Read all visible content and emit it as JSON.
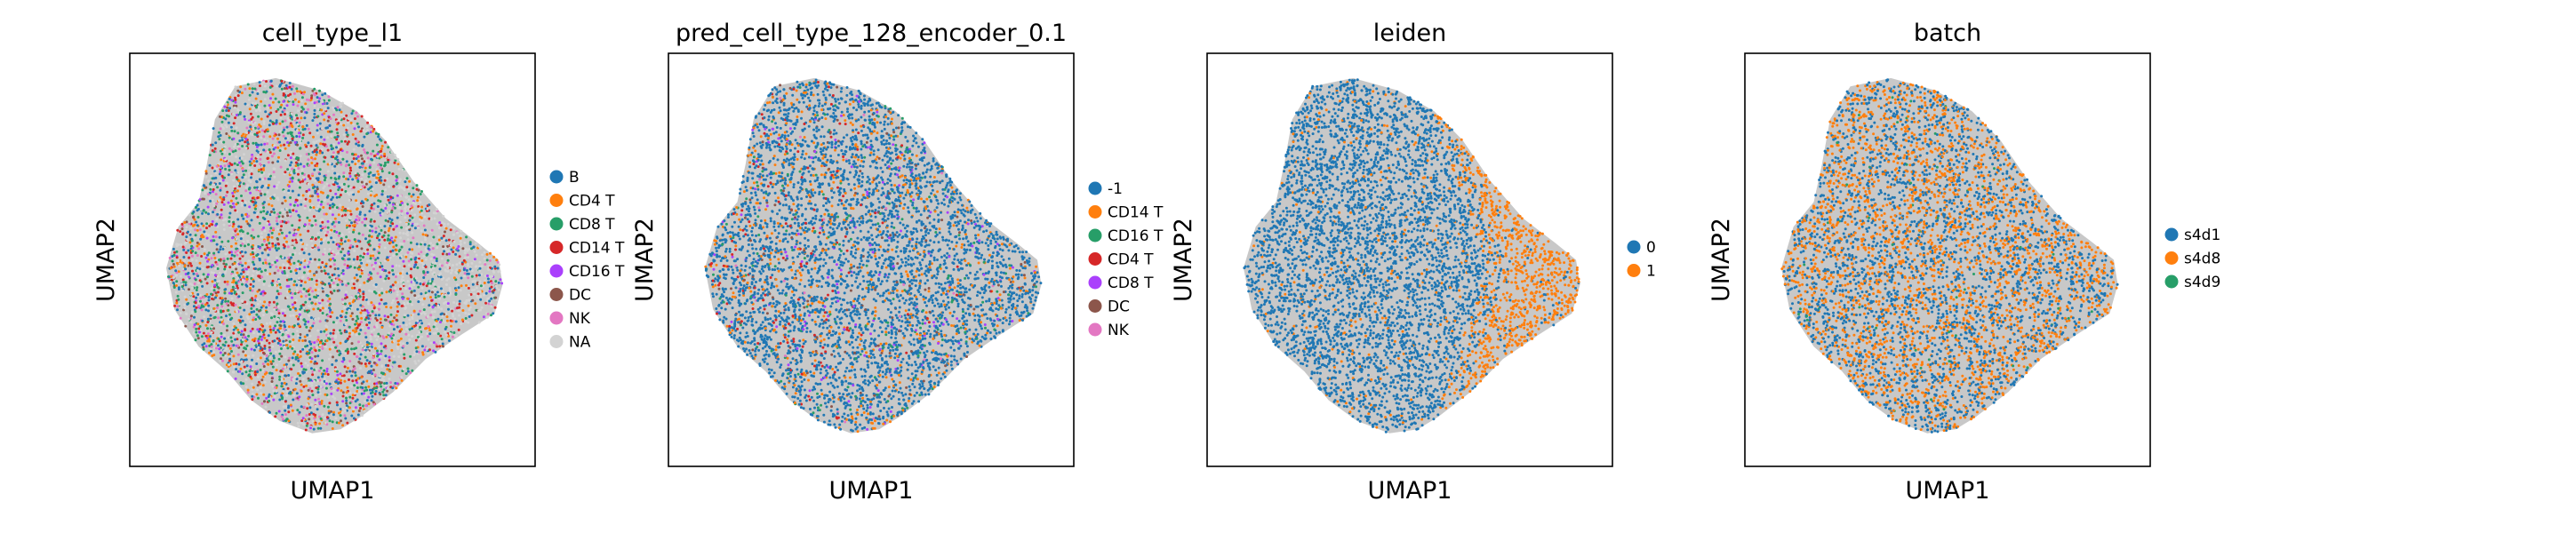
{
  "chart_data": [
    {
      "type": "scatter",
      "title": "cell_type_l1",
      "xlabel": "UMAP1",
      "ylabel": "UMAP2",
      "grid": false,
      "legend": "right",
      "series": [
        {
          "name": "B",
          "color": "#1f77b4"
        },
        {
          "name": "CD4 T",
          "color": "#ff7f0e"
        },
        {
          "name": "CD8 T",
          "color": "#279e68"
        },
        {
          "name": "CD14 T",
          "color": "#d62728"
        },
        {
          "name": "CD16 T",
          "color": "#aa40fc"
        },
        {
          "name": "DC",
          "color": "#8c564b"
        },
        {
          "name": "NK",
          "color": "#e377c2"
        },
        {
          "name": "NA",
          "color": "#d3d3d3"
        }
      ]
    },
    {
      "type": "scatter",
      "title": "pred_cell_type_128_encoder_0.1",
      "xlabel": "UMAP1",
      "ylabel": "UMAP2",
      "grid": false,
      "legend": "right",
      "series": [
        {
          "name": "-1",
          "color": "#1f77b4"
        },
        {
          "name": "CD14 T",
          "color": "#ff7f0e"
        },
        {
          "name": "CD16 T",
          "color": "#279e68"
        },
        {
          "name": "CD4 T",
          "color": "#d62728"
        },
        {
          "name": "CD8 T",
          "color": "#aa40fc"
        },
        {
          "name": "DC",
          "color": "#8c564b"
        },
        {
          "name": "NK",
          "color": "#e377c2"
        }
      ]
    },
    {
      "type": "scatter",
      "title": "leiden",
      "xlabel": "UMAP1",
      "ylabel": "UMAP2",
      "grid": false,
      "legend": "right",
      "series": [
        {
          "name": "0",
          "color": "#1f77b4"
        },
        {
          "name": "1",
          "color": "#ff7f0e"
        }
      ]
    },
    {
      "type": "scatter",
      "title": "batch",
      "xlabel": "UMAP1",
      "ylabel": "UMAP2",
      "grid": false,
      "legend": "right",
      "series": [
        {
          "name": "s4d1",
          "color": "#1f77b4"
        },
        {
          "name": "s4d8",
          "color": "#ff7f0e"
        },
        {
          "name": "s4d9",
          "color": "#279e68"
        }
      ]
    }
  ]
}
